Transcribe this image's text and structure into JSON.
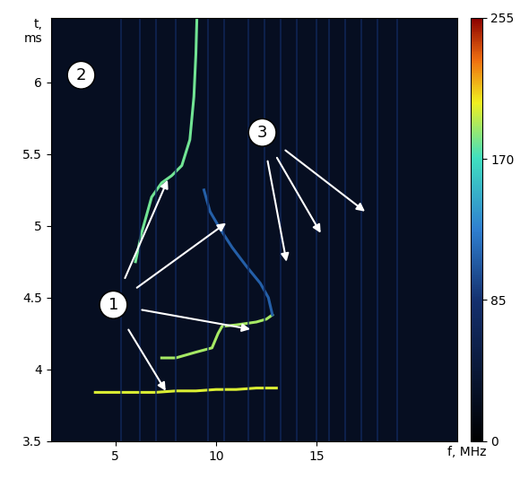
{
  "chart_data": {
    "type": "line",
    "x_label": "f, MHz",
    "y_label": "t,\nms",
    "xlim": [
      1.8,
      22
    ],
    "xticks": [
      5,
      10,
      15
    ],
    "ylim": [
      3.5,
      6.45
    ],
    "yticks": [
      3.5,
      4,
      4.5,
      5,
      5.5,
      6
    ],
    "grid": false,
    "background_level": 25,
    "colorbar": {
      "lim": [
        0,
        255
      ],
      "ticks": [
        0,
        85,
        170,
        255
      ]
    },
    "series": [
      {
        "type": "line",
        "level": 200,
        "x": [
          4,
          5,
          6,
          7,
          8,
          9,
          10,
          11,
          12,
          13
        ],
        "values": [
          3.84,
          3.84,
          3.84,
          3.84,
          3.85,
          3.85,
          3.86,
          3.86,
          3.87,
          3.87
        ]
      },
      {
        "type": "line",
        "level": 190,
        "x": [
          7.3,
          8,
          9,
          9.8,
          10.1,
          10.3,
          11,
          12,
          12.5,
          12.8
        ],
        "values": [
          4.08,
          4.08,
          4.12,
          4.15,
          4.25,
          4.3,
          4.31,
          4.33,
          4.35,
          4.38
        ]
      },
      {
        "type": "line",
        "level": 110,
        "x": [
          12.8,
          12.6,
          12.2,
          11.5,
          10.8,
          10.2,
          9.7,
          9.4
        ],
        "values": [
          4.38,
          4.5,
          4.6,
          4.72,
          4.85,
          4.98,
          5.1,
          5.25
        ]
      },
      {
        "type": "line",
        "level": 180,
        "x": [
          6,
          6.3,
          6.8,
          7.3,
          7.8,
          8.3,
          8.7,
          8.9,
          9.0,
          9.05
        ],
        "values": [
          4.75,
          4.95,
          5.2,
          5.3,
          5.35,
          5.42,
          5.6,
          5.9,
          6.2,
          6.45
        ]
      },
      {
        "type": "vlines",
        "level": 70,
        "x": [
          5.3,
          6.2,
          7.0,
          8.0,
          9.6,
          10.4,
          11.6,
          12.4,
          13.2,
          14.0,
          15.0,
          15.6,
          16.4,
          17.2,
          18.0,
          19.0
        ]
      }
    ],
    "annotations": [
      {
        "text": "1",
        "at": [
          4.9,
          4.45
        ],
        "targets": [
          [
            7.6,
            5.32
          ],
          [
            10.5,
            5.02
          ],
          [
            11.7,
            4.28
          ],
          [
            7.5,
            3.85
          ]
        ]
      },
      {
        "text": "2",
        "at": [
          3.3,
          6.05
        ],
        "targets": []
      },
      {
        "text": "3",
        "at": [
          12.3,
          5.65
        ],
        "targets": [
          [
            13.5,
            4.75
          ],
          [
            15.2,
            4.95
          ],
          [
            17.4,
            5.1
          ]
        ]
      }
    ]
  }
}
